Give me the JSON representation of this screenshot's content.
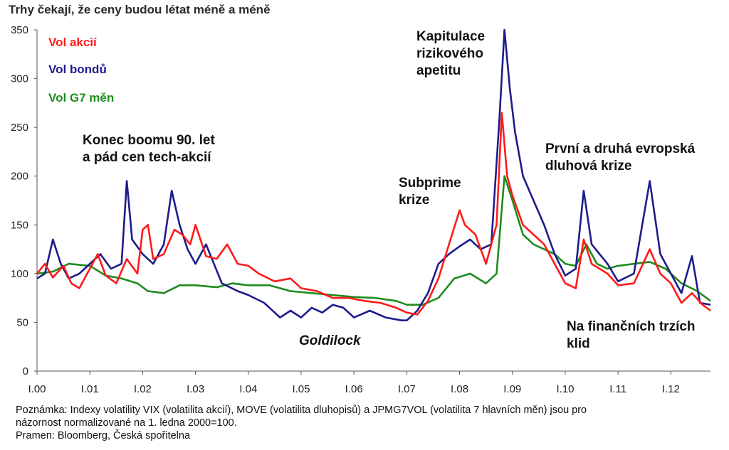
{
  "chart_data": {
    "type": "line",
    "title": "Trhy čekají, že ceny budou létat méně a méně",
    "ylim": [
      0,
      350
    ],
    "yticks": [
      0,
      50,
      100,
      150,
      200,
      250,
      300,
      350
    ],
    "xlim": [
      0,
      12.75
    ],
    "xticks": [
      {
        "x": 0,
        "label": "I.00"
      },
      {
        "x": 1,
        "label": "I.01"
      },
      {
        "x": 2,
        "label": "I.02"
      },
      {
        "x": 3,
        "label": "I.03"
      },
      {
        "x": 4,
        "label": "I.04"
      },
      {
        "x": 5,
        "label": "I.05"
      },
      {
        "x": 6,
        "label": "I.06"
      },
      {
        "x": 7,
        "label": "I.07"
      },
      {
        "x": 8,
        "label": "I.08"
      },
      {
        "x": 9,
        "label": "I.09"
      },
      {
        "x": 10,
        "label": "I.10"
      },
      {
        "x": 11,
        "label": "I.11"
      },
      {
        "x": 12,
        "label": "I.12"
      }
    ],
    "grid": false,
    "legend_position": "top-left",
    "series": [
      {
        "name": "Vol akcií",
        "color": "#ff1a1a",
        "points": [
          [
            0,
            100
          ],
          [
            0.15,
            110
          ],
          [
            0.3,
            96
          ],
          [
            0.5,
            108
          ],
          [
            0.65,
            90
          ],
          [
            0.8,
            85
          ],
          [
            1.0,
            105
          ],
          [
            1.15,
            120
          ],
          [
            1.3,
            98
          ],
          [
            1.5,
            90
          ],
          [
            1.7,
            115
          ],
          [
            1.9,
            100
          ],
          [
            2.0,
            145
          ],
          [
            2.1,
            150
          ],
          [
            2.2,
            115
          ],
          [
            2.4,
            120
          ],
          [
            2.6,
            145
          ],
          [
            2.75,
            140
          ],
          [
            2.9,
            130
          ],
          [
            3.0,
            150
          ],
          [
            3.2,
            118
          ],
          [
            3.4,
            115
          ],
          [
            3.6,
            130
          ],
          [
            3.8,
            110
          ],
          [
            4.0,
            108
          ],
          [
            4.2,
            100
          ],
          [
            4.5,
            92
          ],
          [
            4.8,
            95
          ],
          [
            5.0,
            85
          ],
          [
            5.3,
            82
          ],
          [
            5.6,
            75
          ],
          [
            5.9,
            75
          ],
          [
            6.2,
            72
          ],
          [
            6.5,
            70
          ],
          [
            6.8,
            65
          ],
          [
            7.0,
            60
          ],
          [
            7.2,
            58
          ],
          [
            7.4,
            72
          ],
          [
            7.6,
            95
          ],
          [
            7.8,
            130
          ],
          [
            8.0,
            165
          ],
          [
            8.1,
            150
          ],
          [
            8.3,
            140
          ],
          [
            8.5,
            110
          ],
          [
            8.7,
            150
          ],
          [
            8.8,
            265
          ],
          [
            8.9,
            200
          ],
          [
            9.0,
            180
          ],
          [
            9.2,
            150
          ],
          [
            9.4,
            140
          ],
          [
            9.6,
            130
          ],
          [
            9.8,
            110
          ],
          [
            10.0,
            90
          ],
          [
            10.2,
            85
          ],
          [
            10.35,
            135
          ],
          [
            10.5,
            110
          ],
          [
            10.8,
            100
          ],
          [
            11.0,
            88
          ],
          [
            11.3,
            90
          ],
          [
            11.6,
            125
          ],
          [
            11.8,
            100
          ],
          [
            12.0,
            90
          ],
          [
            12.2,
            70
          ],
          [
            12.4,
            80
          ],
          [
            12.6,
            68
          ],
          [
            12.75,
            62
          ]
        ]
      },
      {
        "name": "Vol bondů",
        "color": "#1c1c8c",
        "points": [
          [
            0,
            95
          ],
          [
            0.15,
            100
          ],
          [
            0.3,
            135
          ],
          [
            0.45,
            110
          ],
          [
            0.6,
            95
          ],
          [
            0.8,
            100
          ],
          [
            1.0,
            110
          ],
          [
            1.2,
            120
          ],
          [
            1.4,
            105
          ],
          [
            1.6,
            110
          ],
          [
            1.7,
            195
          ],
          [
            1.8,
            135
          ],
          [
            2.0,
            120
          ],
          [
            2.2,
            110
          ],
          [
            2.4,
            130
          ],
          [
            2.55,
            185
          ],
          [
            2.7,
            150
          ],
          [
            2.85,
            125
          ],
          [
            3.0,
            110
          ],
          [
            3.2,
            130
          ],
          [
            3.5,
            90
          ],
          [
            3.8,
            82
          ],
          [
            4.0,
            78
          ],
          [
            4.3,
            70
          ],
          [
            4.6,
            55
          ],
          [
            4.8,
            62
          ],
          [
            5.0,
            55
          ],
          [
            5.2,
            65
          ],
          [
            5.4,
            60
          ],
          [
            5.6,
            68
          ],
          [
            5.8,
            65
          ],
          [
            6.0,
            55
          ],
          [
            6.3,
            62
          ],
          [
            6.6,
            55
          ],
          [
            6.9,
            52
          ],
          [
            7.0,
            52
          ],
          [
            7.2,
            62
          ],
          [
            7.4,
            80
          ],
          [
            7.6,
            110
          ],
          [
            7.8,
            120
          ],
          [
            8.0,
            128
          ],
          [
            8.2,
            135
          ],
          [
            8.4,
            125
          ],
          [
            8.6,
            130
          ],
          [
            8.75,
            255
          ],
          [
            8.85,
            350
          ],
          [
            8.95,
            290
          ],
          [
            9.05,
            245
          ],
          [
            9.2,
            200
          ],
          [
            9.4,
            175
          ],
          [
            9.6,
            150
          ],
          [
            9.8,
            120
          ],
          [
            10.0,
            98
          ],
          [
            10.2,
            105
          ],
          [
            10.35,
            185
          ],
          [
            10.5,
            130
          ],
          [
            10.8,
            110
          ],
          [
            11.0,
            92
          ],
          [
            11.3,
            100
          ],
          [
            11.6,
            195
          ],
          [
            11.8,
            120
          ],
          [
            12.0,
            100
          ],
          [
            12.2,
            80
          ],
          [
            12.4,
            118
          ],
          [
            12.55,
            70
          ],
          [
            12.75,
            68
          ]
        ]
      },
      {
        "name": "Vol G7 měn",
        "color": "#1e8c1e",
        "points": [
          [
            0,
            100
          ],
          [
            0.3,
            102
          ],
          [
            0.6,
            110
          ],
          [
            1.0,
            108
          ],
          [
            1.3,
            98
          ],
          [
            1.6,
            95
          ],
          [
            1.9,
            90
          ],
          [
            2.1,
            82
          ],
          [
            2.4,
            80
          ],
          [
            2.7,
            88
          ],
          [
            3.0,
            88
          ],
          [
            3.4,
            86
          ],
          [
            3.7,
            90
          ],
          [
            4.0,
            88
          ],
          [
            4.4,
            88
          ],
          [
            4.8,
            82
          ],
          [
            5.2,
            80
          ],
          [
            5.6,
            78
          ],
          [
            6.0,
            76
          ],
          [
            6.4,
            75
          ],
          [
            6.8,
            72
          ],
          [
            7.0,
            68
          ],
          [
            7.3,
            68
          ],
          [
            7.6,
            75
          ],
          [
            7.9,
            95
          ],
          [
            8.2,
            100
          ],
          [
            8.5,
            90
          ],
          [
            8.7,
            100
          ],
          [
            8.85,
            200
          ],
          [
            9.0,
            175
          ],
          [
            9.2,
            140
          ],
          [
            9.4,
            130
          ],
          [
            9.6,
            125
          ],
          [
            9.8,
            120
          ],
          [
            10.0,
            110
          ],
          [
            10.2,
            108
          ],
          [
            10.4,
            130
          ],
          [
            10.6,
            110
          ],
          [
            10.8,
            105
          ],
          [
            11.0,
            108
          ],
          [
            11.3,
            110
          ],
          [
            11.6,
            112
          ],
          [
            11.9,
            105
          ],
          [
            12.2,
            90
          ],
          [
            12.5,
            82
          ],
          [
            12.75,
            72
          ]
        ]
      }
    ],
    "annotations": {
      "dotcom": "Konec boomu 90. let\na pád cen tech-akcií",
      "goldilock": "Goldilock",
      "subprime": "Subprime\nkrize",
      "capitulation": "Kapitulace\nrizikového\napetitu",
      "euro": "První a druhá evropská\ndluhová krize",
      "calm": "Na finančních trzích\nklid"
    }
  },
  "footnote": "Poznámka: Indexy volatility VIX (volatilita akcií), MOVE (volatilita dluhopisů) a JPMG7VOL (volatilita 7 hlavních měn) jsou pro\nnázornost normalizované na 1. ledna 2000=100.\nPramen: Bloomberg, Česká spořitelna"
}
